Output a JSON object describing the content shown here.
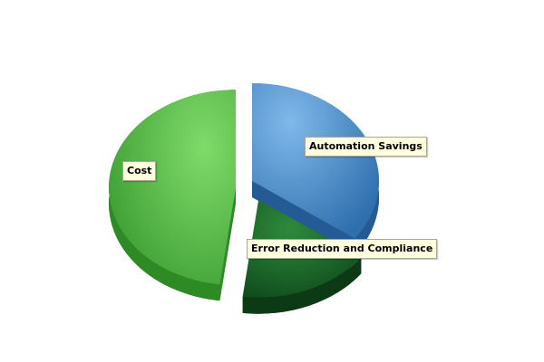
{
  "chart_data": {
    "type": "pie",
    "style": "3d-exploded",
    "title": "",
    "slices": [
      {
        "label": "Automation Savings",
        "value": 35,
        "color": "#4a8fd4",
        "exploded": false
      },
      {
        "label": "Error Reduction and Compliance",
        "value": 17,
        "color": "#1f6b2e",
        "exploded": true
      },
      {
        "label": "Cost",
        "value": 48,
        "color": "#56b84a",
        "exploded": true
      }
    ],
    "legend": "none",
    "data_labels": "on-slices"
  }
}
